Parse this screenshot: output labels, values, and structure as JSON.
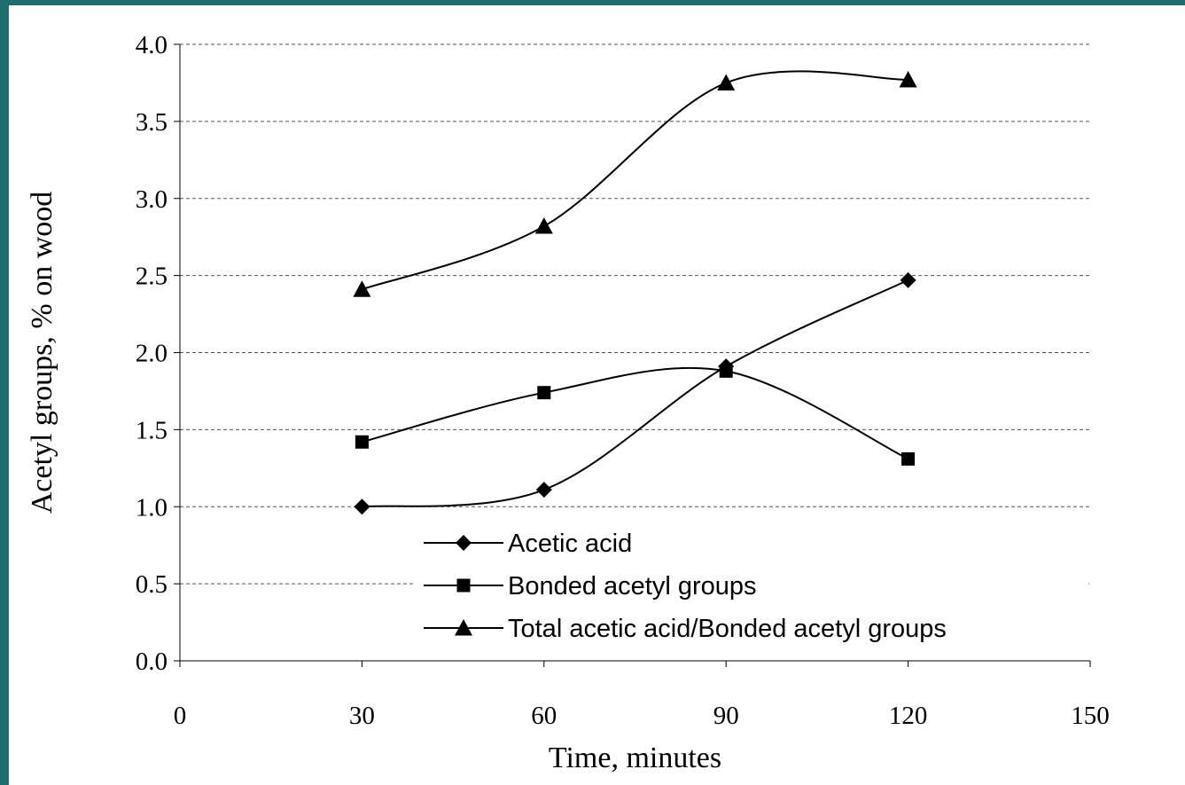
{
  "chart_data": {
    "type": "line",
    "title": "",
    "xlabel": "Time, minutes",
    "ylabel": "Acetyl groups, % on wood",
    "xlim": [
      0,
      150
    ],
    "ylim": [
      0.0,
      4.0
    ],
    "x_ticks": [
      0,
      30,
      60,
      90,
      120,
      150
    ],
    "y_ticks": [
      0.0,
      0.5,
      1.0,
      1.5,
      2.0,
      2.5,
      3.0,
      3.5,
      4.0
    ],
    "x_tick_labels": [
      "0",
      "30",
      "60",
      "90",
      "120",
      "150"
    ],
    "y_tick_labels": [
      "0.0",
      "0.5",
      "1.0",
      "1.5",
      "2.0",
      "2.5",
      "3.0",
      "3.5",
      "4.0"
    ],
    "grid": "horizontal dashed",
    "legend_position": "bottom-center",
    "x": [
      30,
      60,
      90,
      120
    ],
    "series": [
      {
        "name": "Acetic acid",
        "marker": "diamond",
        "values": [
          1.0,
          1.11,
          1.91,
          2.47
        ]
      },
      {
        "name": "Bonded acetyl groups",
        "marker": "square",
        "values": [
          1.42,
          1.74,
          1.88,
          1.31
        ]
      },
      {
        "name": "Total acetic acid/Bonded acetyl groups",
        "marker": "triangle",
        "values": [
          2.41,
          2.82,
          3.75,
          3.77
        ]
      }
    ],
    "colors": {
      "line": "#000000",
      "grid": "#555555",
      "background": "#ffffff",
      "border": "#1e6e6e"
    }
  }
}
